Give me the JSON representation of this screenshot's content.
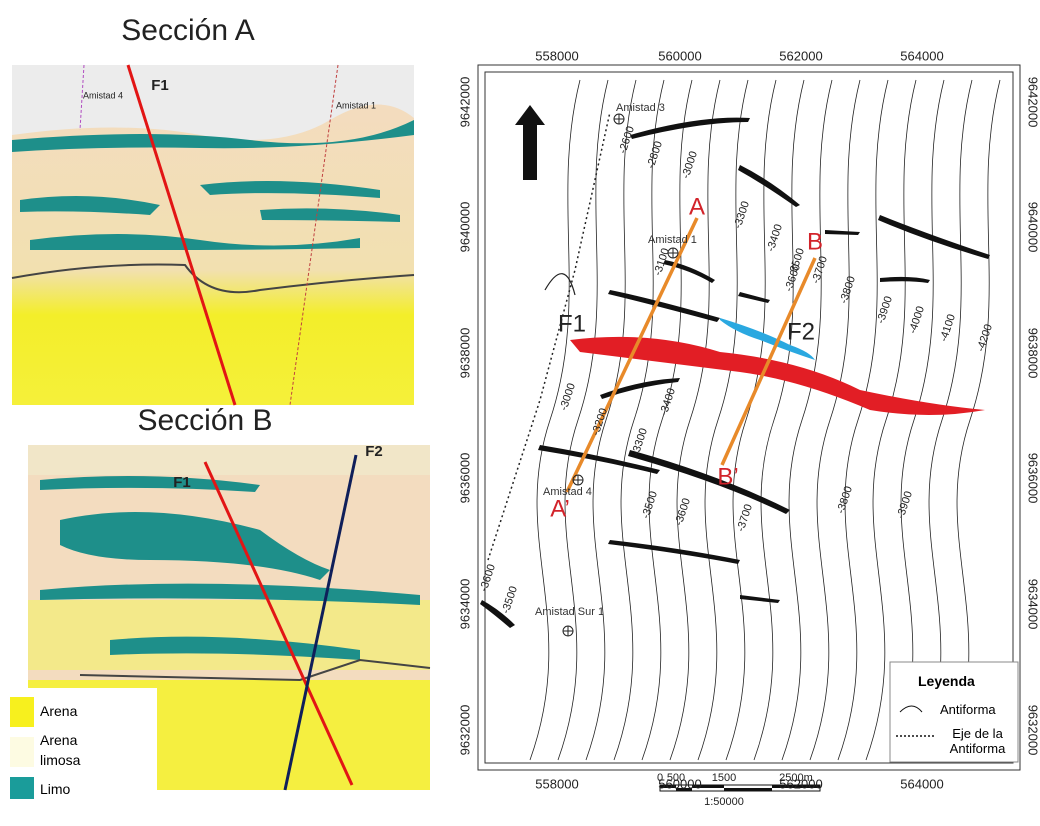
{
  "sections": [
    {
      "title": "Sección A",
      "labels": [
        "F1",
        "Amistad 4",
        "Amistad 1"
      ]
    },
    {
      "title": "Sección B",
      "labels": [
        "F1",
        "F2"
      ]
    }
  ],
  "section_legend": [
    "Arena",
    "Arena limosa",
    "Limo"
  ],
  "map": {
    "x_ticks": [
      "558000",
      "560000",
      "562000",
      "564000"
    ],
    "y_ticks": [
      "9642000",
      "9640000",
      "9638000",
      "9636000",
      "9634000",
      "9632000"
    ],
    "contours": [
      "-2600",
      "-2800",
      "-3000",
      "-3100",
      "-3300",
      "-3400",
      "-3500",
      "-3600",
      "-3700",
      "-3800",
      "-3900",
      "-4000",
      "-4100",
      "-4200",
      "-3000",
      "-3200",
      "-3300",
      "-3400",
      "-3500",
      "-3600",
      "-3700",
      "-3800",
      "-3900",
      "-3600",
      "-3500"
    ],
    "wells": [
      "Amistad 3",
      "Amistad 1",
      "Amistad 4",
      "Amistad Sur 1"
    ],
    "section_ends": [
      "A",
      "A’",
      "B",
      "B’"
    ],
    "faults": [
      "F1",
      "F2"
    ],
    "legend": {
      "title": "Leyenda",
      "items": [
        "Antiforma",
        "Eje de la Antiforma"
      ]
    },
    "scale": {
      "labels": [
        "0",
        "500",
        "1500",
        "2500m"
      ],
      "ratio": "1:50000"
    }
  }
}
